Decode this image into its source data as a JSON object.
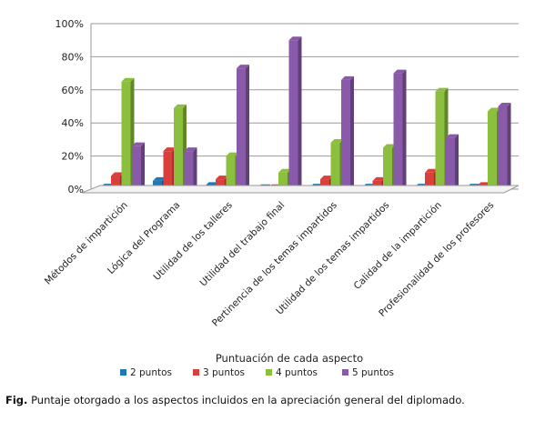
{
  "chart_data": {
    "type": "bar",
    "categories": [
      "Métodos de impartición",
      "Lógica del Programa",
      "Utilidad de los talleres",
      "Utilidad del trabajo final",
      "Pertinencia de los temas impartidos",
      "Utilidad de los temas impartidos",
      "Calidad de la impartición",
      "Profesionalidad de los profesores"
    ],
    "series": [
      {
        "name": "2 puntos",
        "color": "#1f77b4",
        "values": [
          1,
          5,
          2,
          0,
          1,
          1,
          1,
          1
        ]
      },
      {
        "name": "3 puntos",
        "color": "#d9403b",
        "values": [
          8,
          23,
          6,
          0,
          6,
          5,
          10,
          2
        ]
      },
      {
        "name": "4 puntos",
        "color": "#8dbf3f",
        "values": [
          65,
          49,
          20,
          10,
          28,
          25,
          59,
          47
        ]
      },
      {
        "name": "5 puntos",
        "color": "#8a5aaa",
        "values": [
          26,
          23,
          73,
          90,
          66,
          70,
          31,
          50
        ]
      }
    ],
    "yticks": [
      "0%",
      "20%",
      "40%",
      "60%",
      "80%",
      "100%"
    ],
    "ylim": [
      0,
      100
    ],
    "grid": true,
    "legend_title": "Puntuación de cada aspecto",
    "legend_placement": "bottom"
  },
  "caption": {
    "prefix": "Fig.",
    "text": "Puntaje otorgado a los aspectos incluidos en la apreciación general del diplomado."
  }
}
